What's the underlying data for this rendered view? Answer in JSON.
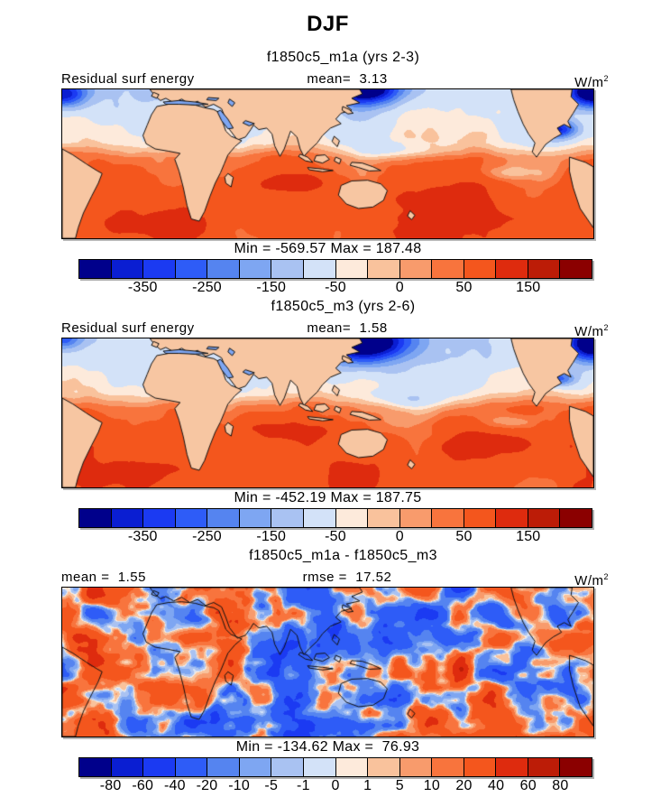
{
  "title": "DJF",
  "units": {
    "base": "W/m",
    "exp": "2"
  },
  "panels": [
    {
      "subtitle": "f1850c5_m1a (yrs 2-3)",
      "left_label": "Residual surf energy",
      "center_label": "mean=  3.13",
      "minmax": "Min = -569.57 Max = 187.48",
      "ticks": [
        "-350",
        "-250",
        "-150",
        "-50",
        "0",
        "50",
        "150"
      ]
    },
    {
      "subtitle": "f1850c5_m3 (yrs 2-6)",
      "left_label": "Residual surf energy",
      "center_label": "mean=  1.58",
      "minmax": "Min = -452.19 Max = 187.75",
      "ticks": [
        "-350",
        "-250",
        "-150",
        "-50",
        "0",
        "50",
        "150"
      ]
    },
    {
      "subtitle": "f1850c5_m1a - f1850c5_m3",
      "left_label": "mean =  1.55",
      "center_label": "rmse =  17.52",
      "minmax": "Min = -134.62 Max =  76.93",
      "ticks": [
        "-80",
        "-60",
        "-40",
        "-20",
        "-10",
        "-5",
        "-1",
        "0",
        "1",
        "5",
        "10",
        "20",
        "40",
        "60",
        "80"
      ]
    }
  ],
  "chart_data": {
    "type": "heatmap",
    "subtype": "filled-contour-global-latlon-maps",
    "season": "DJF",
    "variable": "Residual surf energy",
    "units": "W/m^2",
    "palette": [
      "#00008b",
      "#0a1ed2",
      "#1b3af2",
      "#2e5cf7",
      "#5584f0",
      "#7ea6f2",
      "#a9c2f2",
      "#d3e2f8",
      "#fdeadb",
      "#f9c29c",
      "#f89b6c",
      "#f8743d",
      "#f4561d",
      "#de2b0e",
      "#bc1c07",
      "#8b0000"
    ],
    "maps": [
      {
        "name": "f1850c5_m1a",
        "years": "yrs 2-3",
        "mean": 3.13,
        "min": -569.57,
        "max": 187.48,
        "contour_levels": [
          -400,
          -350,
          -300,
          -250,
          -200,
          -150,
          -100,
          -50,
          -25,
          0,
          25,
          50,
          100,
          150,
          200
        ],
        "colorbar_tick_labels": [
          -350,
          -250,
          -150,
          -50,
          0,
          50,
          150
        ]
      },
      {
        "name": "f1850c5_m3",
        "years": "yrs 2-6",
        "mean": 1.58,
        "min": -452.19,
        "max": 187.75,
        "contour_levels": [
          -400,
          -350,
          -300,
          -250,
          -200,
          -150,
          -100,
          -50,
          -25,
          0,
          25,
          50,
          100,
          150,
          200
        ],
        "colorbar_tick_labels": [
          -350,
          -250,
          -150,
          -50,
          0,
          50,
          150
        ]
      },
      {
        "name": "f1850c5_m1a - f1850c5_m3",
        "mean": 1.55,
        "rmse": 17.52,
        "min": -134.62,
        "max": 76.93,
        "contour_levels": [
          -80,
          -60,
          -40,
          -20,
          -10,
          -5,
          -1,
          0,
          1,
          5,
          10,
          20,
          40,
          60,
          80
        ],
        "colorbar_tick_labels": [
          -80,
          -60,
          -40,
          -20,
          -10,
          -5,
          -1,
          0,
          1,
          5,
          10,
          20,
          40,
          60,
          80
        ]
      }
    ],
    "legend_position": "below-each-map",
    "grid": false
  }
}
